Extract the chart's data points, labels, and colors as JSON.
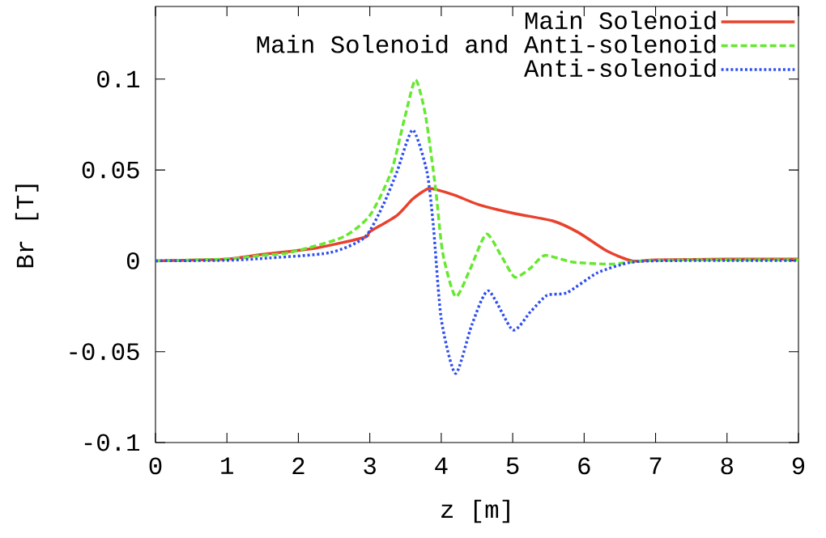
{
  "chart_data": {
    "type": "line",
    "xlabel": "z [m]",
    "ylabel": "Br [T]",
    "xlim": [
      0,
      9
    ],
    "ylim": [
      -0.1,
      0.14
    ],
    "xticks": [
      0,
      1,
      2,
      3,
      4,
      5,
      6,
      7,
      8,
      9
    ],
    "yticks": [
      -0.1,
      -0.05,
      0,
      0.05,
      0.1
    ],
    "grid": false,
    "legend": "top right",
    "series": [
      {
        "name": "Main Solenoid",
        "color": "#e8412c",
        "line_style": "solid",
        "x": [
          0,
          1,
          1.49,
          2.24,
          2.93,
          3.0,
          3.38,
          3.6,
          3.81,
          3.95,
          4.2,
          4.52,
          5.03,
          5.56,
          5.92,
          6.32,
          6.67,
          7,
          8,
          9
        ],
        "values": [
          0,
          0.001,
          0.0035,
          0.007,
          0.013,
          0.016,
          0.025,
          0.034,
          0.0397,
          0.039,
          0.036,
          0.031,
          0.026,
          0.022,
          0.0156,
          0.0054,
          0,
          0.0005,
          0.001,
          0.001
        ]
      },
      {
        "name": "Main Solenoid and Anti-solenoid",
        "color": "#66e830",
        "line_style": "dashed",
        "x": [
          0,
          1,
          1.49,
          1.87,
          2.62,
          3.0,
          3.3,
          3.49,
          3.64,
          3.78,
          3.92,
          4.02,
          4.2,
          4.4,
          4.63,
          4.85,
          5.03,
          5.25,
          5.45,
          5.84,
          6.39,
          6.8,
          7.5,
          9
        ],
        "values": [
          0,
          0.001,
          0.003,
          0.0045,
          0.013,
          0.025,
          0.049,
          0.079,
          0.0996,
          0.08,
          0.04,
          0.0045,
          -0.0197,
          -0.005,
          0.0147,
          0.002,
          -0.009,
          -0.004,
          0.003,
          -0.0007,
          -0.0018,
          0,
          0.0005,
          0.0005
        ]
      },
      {
        "name": "Anti-solenoid",
        "color": "#2f4ff0",
        "line_style": "dotted",
        "x": [
          0,
          1,
          1.49,
          2.44,
          2.93,
          3.19,
          3.38,
          3.6,
          3.8,
          3.89,
          4.0,
          4.2,
          4.43,
          4.66,
          5.0,
          5.25,
          5.48,
          5.76,
          6.19,
          6.63,
          7,
          8,
          9
        ],
        "values": [
          0,
          0.0003,
          0.0013,
          0.0045,
          0.013,
          0.031,
          0.049,
          0.072,
          0.049,
          0.019,
          -0.032,
          -0.062,
          -0.035,
          -0.0165,
          -0.038,
          -0.028,
          -0.019,
          -0.0175,
          -0.0065,
          -0.001,
          0,
          0.0002,
          0.0002
        ]
      }
    ]
  }
}
